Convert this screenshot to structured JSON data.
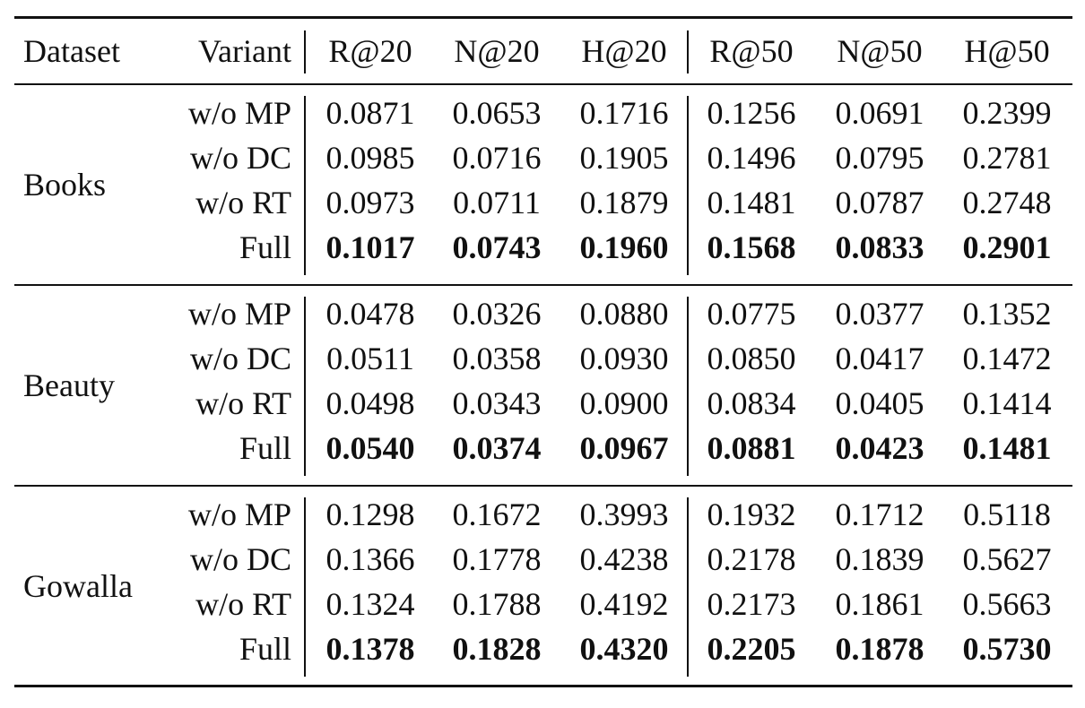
{
  "table": {
    "headers": [
      "Dataset",
      "Variant",
      "R@20",
      "N@20",
      "H@20",
      "R@50",
      "N@50",
      "H@50"
    ],
    "groups": [
      {
        "dataset": "Books",
        "rows": [
          {
            "variant": "w/o MP",
            "values": [
              "0.0871",
              "0.0653",
              "0.1716",
              "0.1256",
              "0.0691",
              "0.2399"
            ]
          },
          {
            "variant": "w/o DC",
            "values": [
              "0.0985",
              "0.0716",
              "0.1905",
              "0.1496",
              "0.0795",
              "0.2781"
            ]
          },
          {
            "variant": "w/o RT",
            "values": [
              "0.0973",
              "0.0711",
              "0.1879",
              "0.1481",
              "0.0787",
              "0.2748"
            ]
          },
          {
            "variant": "Full",
            "values": [
              "0.1017",
              "0.0743",
              "0.1960",
              "0.1568",
              "0.0833",
              "0.2901"
            ],
            "bold": true
          }
        ]
      },
      {
        "dataset": "Beauty",
        "rows": [
          {
            "variant": "w/o MP",
            "values": [
              "0.0478",
              "0.0326",
              "0.0880",
              "0.0775",
              "0.0377",
              "0.1352"
            ]
          },
          {
            "variant": "w/o DC",
            "values": [
              "0.0511",
              "0.0358",
              "0.0930",
              "0.0850",
              "0.0417",
              "0.1472"
            ]
          },
          {
            "variant": "w/o RT",
            "values": [
              "0.0498",
              "0.0343",
              "0.0900",
              "0.0834",
              "0.0405",
              "0.1414"
            ]
          },
          {
            "variant": "Full",
            "values": [
              "0.0540",
              "0.0374",
              "0.0967",
              "0.0881",
              "0.0423",
              "0.1481"
            ],
            "bold": true
          }
        ]
      },
      {
        "dataset": "Gowalla",
        "rows": [
          {
            "variant": "w/o MP",
            "values": [
              "0.1298",
              "0.1672",
              "0.3993",
              "0.1932",
              "0.1712",
              "0.5118"
            ]
          },
          {
            "variant": "w/o DC",
            "values": [
              "0.1366",
              "0.1778",
              "0.4238",
              "0.2178",
              "0.1839",
              "0.5627"
            ]
          },
          {
            "variant": "w/o RT",
            "values": [
              "0.1324",
              "0.1788",
              "0.4192",
              "0.2173",
              "0.1861",
              "0.5663"
            ]
          },
          {
            "variant": "Full",
            "values": [
              "0.1378",
              "0.1828",
              "0.4320",
              "0.2205",
              "0.1878",
              "0.5730"
            ],
            "bold": true
          }
        ]
      }
    ]
  }
}
